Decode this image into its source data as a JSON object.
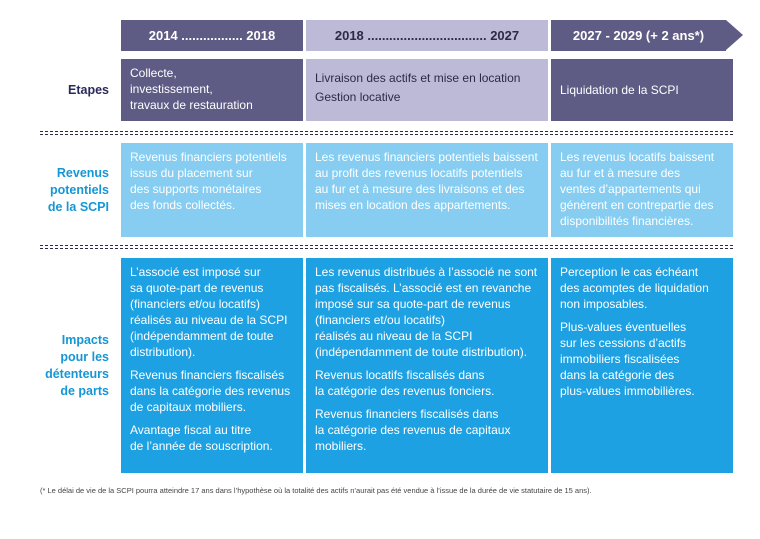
{
  "headers": [
    "2014 ................. 2018",
    "2018 ................................. 2027",
    "2027 - 2029 (+ 2 ans*)"
  ],
  "row_labels": {
    "etapes": "Etapes",
    "revenus": "Revenus\npotentiels\nde la SCPI",
    "impacts": "Impacts\npour les\ndétenteurs\nde parts"
  },
  "etapes": [
    "Collecte,\ninvestissement,\ntravaux de restauration",
    "Livraison des actifs et mise en location\nGestion locative",
    "Liquidation de la SCPI"
  ],
  "revenus": [
    "Revenus financiers potentiels\nissus du placement sur\ndes supports monétaires\ndes fonds collectés.",
    "Les revenus financiers potentiels baissent\nau profit des revenus locatifs potentiels\nau fur et à mesure des livraisons et des\nmises en location des appartements.",
    "Les revenus locatifs baissent\nau fur et à mesure des\nventes d’appartements qui\ngénèrent en contrepartie des\ndisponibilités financières."
  ],
  "impacts": [
    [
      "L’associé est imposé sur\nsa quote-part de revenus\n(financiers et/ou locatifs)\nréalisés au niveau de la SCPI\n(indépendamment de toute\ndistribution).",
      "Revenus financiers fiscalisés\ndans la catégorie des revenus\nde capitaux mobiliers.",
      "Avantage fiscal au titre\nde l’année de souscription."
    ],
    [
      "Les revenus distribués à l’associé ne sont\npas fiscalisés. L’associé est en revanche\nimposé sur sa quote-part de revenus\n(financiers et/ou locatifs)\nréalisés au niveau de la SCPI\n(indépendamment de toute distribution).",
      "Revenus locatifs fiscalisés dans\nla catégorie des revenus fonciers.",
      "Revenus financiers fiscalisés dans\nla catégorie des revenus de capitaux\nmobiliers."
    ],
    [
      "Perception le cas échéant\ndes acomptes de liquidation\nnon imposables.",
      "Plus-values éventuelles\nsur les cessions d’actifs\nimmobiliers fiscalisées\ndans la catégorie des\nplus-values immobilières."
    ]
  ],
  "footnote": "(* Le délai de vie de la SCPI pourra atteindre 17 ans dans l’hypothèse où la totalité des actifs n’aurait pas été vendue à l’issue de la durée de vie statutaire de 15 ans).",
  "colors": {
    "dark_purple": "#5e5b84",
    "light_purple": "#bcbad6",
    "light_blue": "#86cdf1",
    "blue": "#1da1e2",
    "label_blue": "#1597d5",
    "label_navy": "#2a2b5c"
  }
}
